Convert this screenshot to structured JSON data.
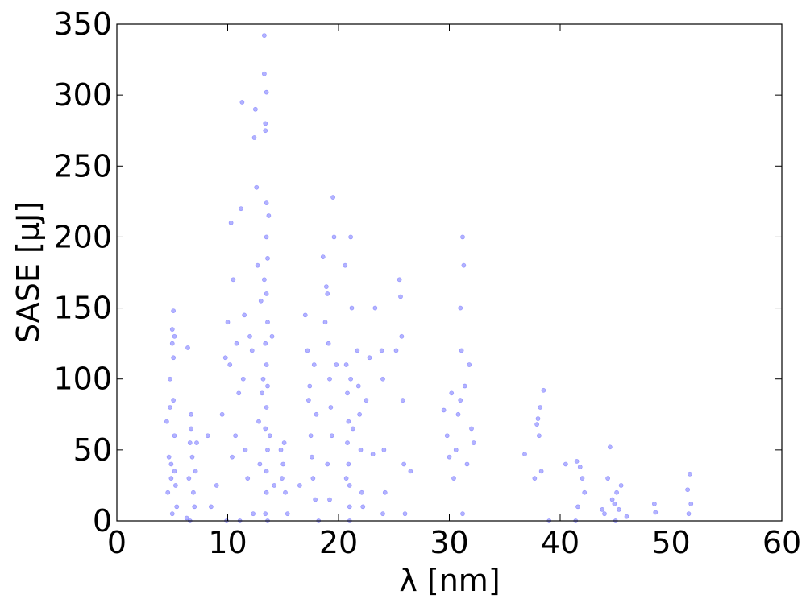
{
  "chart_data": {
    "type": "scatter",
    "xlabel": "λ [nm]",
    "ylabel": "SASE [μJ]",
    "color": "#0000ff",
    "xlim": [
      0,
      60
    ],
    "ylim": [
      0,
      350
    ],
    "xticks": [
      0,
      10,
      20,
      30,
      40,
      50,
      60
    ],
    "yticks": [
      0,
      50,
      100,
      150,
      200,
      250,
      300,
      350
    ],
    "grid": false,
    "x": [
      4.6,
      4.7,
      4.8,
      4.9,
      5.0,
      5.0,
      5.1,
      5.1,
      5.2,
      5.2,
      5.3,
      5.0,
      4.5,
      4.8,
      5.4,
      5.1,
      4.9,
      5.2,
      6.3,
      6.5,
      6.6,
      6.7,
      6.8,
      6.9,
      7.0,
      6.4,
      6.7,
      7.1,
      6.6,
      7.2,
      8.2,
      8.5,
      9.0,
      9.5,
      9.8,
      10.0,
      10.2,
      10.3,
      10.5,
      10.7,
      10.8,
      11.0,
      11.2,
      11.3,
      11.4,
      11.5,
      11.6,
      11.8,
      12.0,
      12.2,
      12.3,
      12.4,
      12.5,
      12.6,
      12.7,
      12.8,
      12.9,
      13.0,
      13.1,
      11.1,
      10.4,
      9.9,
      13.3,
      13.3,
      13.4,
      13.5,
      13.4,
      13.5,
      13.5,
      13.6,
      13.5,
      13.6,
      13.4,
      13.5,
      13.6,
      13.5,
      13.4,
      13.6,
      13.5,
      13.5,
      13.4,
      13.6,
      13.7,
      13.3,
      13.2,
      13.8,
      14.0,
      14.2,
      14.8,
      15.0,
      15.1,
      15.2,
      15.4,
      14.9,
      16.5,
      17.0,
      17.2,
      17.4,
      17.5,
      17.6,
      17.7,
      17.8,
      17.9,
      18.0,
      18.2,
      17.3,
      18.6,
      18.8,
      19.0,
      19.1,
      19.2,
      19.3,
      19.4,
      19.5,
      19.6,
      19.0,
      19.2,
      18.9,
      19.8,
      20.6,
      20.7,
      20.8,
      20.9,
      20.8,
      20.9,
      21.0,
      21.0,
      21.1,
      21.2,
      21.0,
      20.7,
      21.3,
      21.1,
      21.7,
      21.8,
      21.9,
      22.0,
      22.1,
      22.2,
      22.5,
      22.8,
      23.1,
      23.3,
      23.9,
      24.0,
      24.1,
      24.2,
      24.0,
      25.2,
      25.5,
      25.6,
      25.7,
      25.8,
      25.9,
      26.0,
      26.5,
      29.5,
      29.8,
      30.0,
      30.2,
      30.4,
      30.6,
      30.8,
      31.0,
      31.1,
      31.2,
      31.3,
      31.4,
      31.6,
      31.2,
      31.8,
      32.0,
      32.2,
      31.0,
      36.8,
      37.7,
      37.9,
      38.0,
      38.1,
      38.2,
      38.5,
      38.3,
      39.0,
      40.5,
      41.5,
      41.8,
      42.0,
      42.2,
      41.6,
      41.4,
      43.8,
      44.0,
      44.3,
      44.5,
      44.7,
      44.9,
      45.1,
      45.3,
      45.0,
      45.5,
      46.0,
      48.5,
      48.6,
      51.5,
      51.7,
      51.8,
      51.6
    ],
    "values": [
      20,
      45,
      80,
      30,
      125,
      135,
      115,
      148,
      35,
      60,
      25,
      5,
      70,
      100,
      10,
      85,
      40,
      130,
      2,
      30,
      55,
      65,
      45,
      20,
      10,
      122,
      75,
      35,
      0,
      55,
      60,
      10,
      25,
      75,
      115,
      140,
      110,
      210,
      170,
      60,
      125,
      90,
      220,
      295,
      100,
      145,
      50,
      30,
      130,
      120,
      5,
      270,
      290,
      235,
      180,
      70,
      40,
      155,
      90,
      0,
      45,
      0,
      342,
      315,
      280,
      302,
      275,
      224,
      200,
      185,
      160,
      140,
      125,
      110,
      95,
      80,
      65,
      50,
      35,
      20,
      5,
      0,
      215,
      170,
      100,
      60,
      130,
      25,
      50,
      40,
      55,
      20,
      5,
      30,
      25,
      145,
      120,
      95,
      60,
      45,
      30,
      110,
      15,
      75,
      0,
      85,
      186,
      140,
      160,
      125,
      100,
      80,
      60,
      228,
      200,
      40,
      15,
      165,
      110,
      180,
      110,
      90,
      70,
      55,
      40,
      25,
      10,
      200,
      150,
      0,
      30,
      65,
      100,
      120,
      95,
      75,
      50,
      20,
      10,
      85,
      115,
      47,
      150,
      120,
      100,
      50,
      20,
      5,
      120,
      170,
      158,
      130,
      85,
      40,
      5,
      35,
      78,
      60,
      45,
      90,
      30,
      50,
      75,
      150,
      120,
      200,
      180,
      95,
      40,
      5,
      110,
      65,
      55,
      85,
      47,
      30,
      68,
      72,
      60,
      80,
      92,
      35,
      0,
      40,
      42,
      38,
      30,
      20,
      10,
      0,
      8,
      5,
      30,
      52,
      15,
      12,
      20,
      8,
      0,
      25,
      3,
      12,
      6,
      22,
      33,
      12,
      5
    ]
  }
}
